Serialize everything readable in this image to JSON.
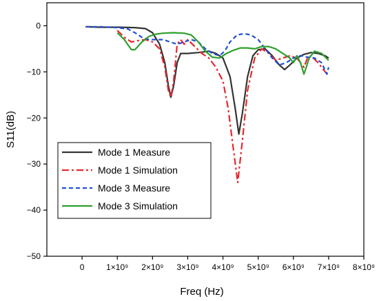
{
  "chart_data": {
    "type": "line",
    "xlabel": "Freq (Hz)",
    "ylabel": "S11(dB)",
    "xlim": [
      -1000000000,
      8000000000
    ],
    "ylim": [
      -50,
      5
    ],
    "x_ticks": [
      0,
      1000000000,
      2000000000,
      3000000000,
      4000000000,
      5000000000,
      6000000000,
      7000000000,
      8000000000
    ],
    "x_tick_labels": [
      "0",
      "1×10⁹",
      "2×10⁹",
      "3×10⁹",
      "4×10⁹",
      "5×10⁹",
      "6×10⁹",
      "7×10⁹",
      "8×10⁹"
    ],
    "y_ticks": [
      0,
      -10,
      -20,
      -30,
      -40,
      -50
    ],
    "y_tick_labels": [
      "0",
      "−10",
      "−20",
      "−30",
      "−40",
      "−50"
    ],
    "grid": false,
    "legend_position": "bottom-left",
    "series": [
      {
        "name": "Mode 1 Measure",
        "color": "#333333",
        "dash": "solid",
        "points": [
          [
            100000000,
            -0.2
          ],
          [
            500000000,
            -0.3
          ],
          [
            1000000000,
            -0.3
          ],
          [
            1500000000,
            -0.4
          ],
          [
            1800000000,
            -0.6
          ],
          [
            2000000000,
            -1.5
          ],
          [
            2200000000,
            -4
          ],
          [
            2350000000,
            -8
          ],
          [
            2450000000,
            -13
          ],
          [
            2520000000,
            -15.5
          ],
          [
            2600000000,
            -13
          ],
          [
            2700000000,
            -8
          ],
          [
            2800000000,
            -6
          ],
          [
            3000000000,
            -6
          ],
          [
            3300000000,
            -5.8
          ],
          [
            3600000000,
            -5.5
          ],
          [
            3800000000,
            -6
          ],
          [
            4000000000,
            -7
          ],
          [
            4200000000,
            -11
          ],
          [
            4350000000,
            -18
          ],
          [
            4450000000,
            -23.5
          ],
          [
            4550000000,
            -19
          ],
          [
            4700000000,
            -11
          ],
          [
            4850000000,
            -6.5
          ],
          [
            5000000000,
            -5.2
          ],
          [
            5200000000,
            -5
          ],
          [
            5400000000,
            -6.5
          ],
          [
            5600000000,
            -8.5
          ],
          [
            5750000000,
            -9.5
          ],
          [
            5900000000,
            -8.5
          ],
          [
            6100000000,
            -7
          ],
          [
            6300000000,
            -6.2
          ],
          [
            6500000000,
            -5.8
          ],
          [
            6700000000,
            -6
          ],
          [
            6900000000,
            -6.5
          ],
          [
            7000000000,
            -7
          ]
        ]
      },
      {
        "name": "Mode 1 Simulation",
        "color": "#e8262b",
        "dash": "dashdot",
        "points": [
          [
            1000000000,
            -1
          ],
          [
            1200000000,
            -2.5
          ],
          [
            1400000000,
            -3.5
          ],
          [
            1600000000,
            -3.2
          ],
          [
            1800000000,
            -3
          ],
          [
            2000000000,
            -3.5
          ],
          [
            2200000000,
            -5
          ],
          [
            2350000000,
            -9
          ],
          [
            2450000000,
            -14
          ],
          [
            2520000000,
            -15.5
          ],
          [
            2600000000,
            -12
          ],
          [
            2700000000,
            -4
          ],
          [
            2800000000,
            -3
          ],
          [
            2900000000,
            -4
          ],
          [
            3000000000,
            -3
          ],
          [
            3200000000,
            -4.5
          ],
          [
            3400000000,
            -6
          ],
          [
            3600000000,
            -7
          ],
          [
            3800000000,
            -9
          ],
          [
            4000000000,
            -12
          ],
          [
            4150000000,
            -18
          ],
          [
            4300000000,
            -27
          ],
          [
            4420000000,
            -34
          ],
          [
            4550000000,
            -25
          ],
          [
            4700000000,
            -14
          ],
          [
            4900000000,
            -7
          ],
          [
            5100000000,
            -5
          ],
          [
            5300000000,
            -6
          ],
          [
            5500000000,
            -7.5
          ],
          [
            5700000000,
            -7
          ],
          [
            5900000000,
            -6.5
          ],
          [
            6100000000,
            -7
          ],
          [
            6300000000,
            -9
          ],
          [
            6400000000,
            -7
          ],
          [
            6500000000,
            -6.5
          ],
          [
            6700000000,
            -8
          ],
          [
            6900000000,
            -10
          ],
          [
            7000000000,
            -10.5
          ]
        ]
      },
      {
        "name": "Mode 3 Measure",
        "color": "#1f4fd8",
        "dash": "dashed",
        "points": [
          [
            100000000,
            -0.2
          ],
          [
            500000000,
            -0.2
          ],
          [
            1000000000,
            -0.4
          ],
          [
            1300000000,
            -0.7
          ],
          [
            1500000000,
            -1.5
          ],
          [
            1700000000,
            -2.5
          ],
          [
            1900000000,
            -3
          ],
          [
            2100000000,
            -3
          ],
          [
            2300000000,
            -3
          ],
          [
            2500000000,
            -3.5
          ],
          [
            2700000000,
            -4
          ],
          [
            2900000000,
            -3.5
          ],
          [
            3100000000,
            -3
          ],
          [
            3300000000,
            -3.5
          ],
          [
            3500000000,
            -5
          ],
          [
            3700000000,
            -6
          ],
          [
            3900000000,
            -6.5
          ],
          [
            4050000000,
            -5.5
          ],
          [
            4200000000,
            -3.5
          ],
          [
            4400000000,
            -2
          ],
          [
            4600000000,
            -1.7
          ],
          [
            4800000000,
            -2
          ],
          [
            5000000000,
            -3
          ],
          [
            5200000000,
            -5
          ],
          [
            5400000000,
            -7
          ],
          [
            5600000000,
            -8.5
          ],
          [
            5800000000,
            -8
          ],
          [
            6000000000,
            -7
          ],
          [
            6200000000,
            -6.5
          ],
          [
            6400000000,
            -6.8
          ],
          [
            6600000000,
            -7
          ],
          [
            6800000000,
            -8
          ],
          [
            6950000000,
            -10.5
          ],
          [
            7000000000,
            -9
          ]
        ]
      },
      {
        "name": "Mode 3 Simulation",
        "color": "#2ca02c",
        "dash": "solid",
        "points": [
          [
            1000000000,
            -1.5
          ],
          [
            1200000000,
            -3
          ],
          [
            1400000000,
            -5.2
          ],
          [
            1500000000,
            -5.2
          ],
          [
            1700000000,
            -3.5
          ],
          [
            1900000000,
            -2.3
          ],
          [
            2100000000,
            -1.8
          ],
          [
            2300000000,
            -1.6
          ],
          [
            2600000000,
            -1.5
          ],
          [
            2900000000,
            -1.6
          ],
          [
            3100000000,
            -2
          ],
          [
            3300000000,
            -3.5
          ],
          [
            3500000000,
            -5.5
          ],
          [
            3700000000,
            -6.8
          ],
          [
            3900000000,
            -7
          ],
          [
            4100000000,
            -6
          ],
          [
            4300000000,
            -5.3
          ],
          [
            4500000000,
            -4.8
          ],
          [
            4700000000,
            -4.8
          ],
          [
            4900000000,
            -5
          ],
          [
            5100000000,
            -4.5
          ],
          [
            5300000000,
            -4.5
          ],
          [
            5500000000,
            -5
          ],
          [
            5700000000,
            -6
          ],
          [
            5900000000,
            -7
          ],
          [
            6000000000,
            -8
          ],
          [
            6100000000,
            -6.5
          ],
          [
            6200000000,
            -8
          ],
          [
            6300000000,
            -10.5
          ],
          [
            6450000000,
            -7
          ],
          [
            6600000000,
            -5.5
          ],
          [
            6800000000,
            -6
          ],
          [
            7000000000,
            -7.5
          ]
        ]
      }
    ]
  }
}
